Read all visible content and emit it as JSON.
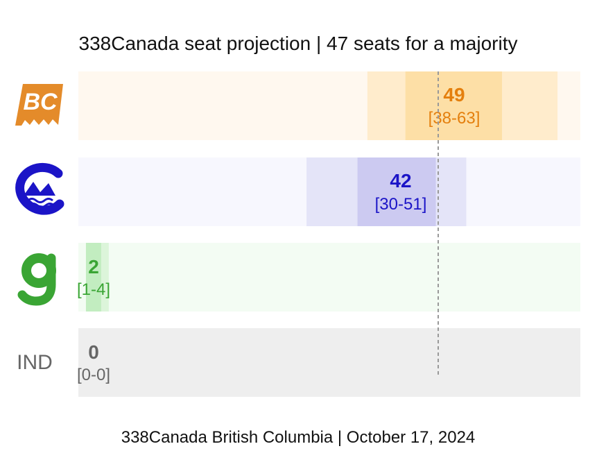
{
  "chart_data": {
    "type": "bar",
    "title": "338Canada seat projection | 47 seats for a majority",
    "footer": "338Canada British Columbia | October 17, 2024",
    "majority_line": 47,
    "xlim": [
      0,
      66
    ],
    "parties": [
      {
        "key": "bc-conservatives",
        "logo": "bc-conservative-logo",
        "value": 49,
        "range_label": "[38-63]",
        "low": 38,
        "high": 63,
        "inner_low": 43,
        "inner_high": 55.7,
        "outer_high": 63,
        "track_color": "#fff8ef",
        "outer_color": "#ffeccc",
        "inner_color": "#fddfa6",
        "text_color": "#e47f0d"
      },
      {
        "key": "bc-ndp",
        "logo": "bc-ndp-logo",
        "value": 42,
        "range_label": "[30-51]",
        "low": 30,
        "high": 51,
        "inner_low": 36.7,
        "inner_high": 47,
        "track_color": "#f7f7fe",
        "outer_color": "#e4e4f8",
        "inner_color": "#cccaf1",
        "text_color": "#1b14c7"
      },
      {
        "key": "bc-greens",
        "logo": "bc-green-logo",
        "value": 2,
        "range_label": "[1-4]",
        "low": 1,
        "high": 4,
        "inner_low": 1,
        "inner_high": 3,
        "track_color": "#f3fcf3",
        "outer_color": "#dcf5da",
        "inner_color": "#c2edc0",
        "text_color": "#3aa534"
      },
      {
        "key": "independents",
        "label": "IND",
        "value": 0,
        "range_label": "[0-0]",
        "low": 0,
        "high": 0,
        "inner_low": 0,
        "inner_high": 0,
        "track_color": "#eeeeee",
        "outer_color": "#eeeeee",
        "inner_color": "#eeeeee",
        "text_color": "#666666"
      }
    ]
  },
  "colors": {
    "bc_orange": "#e48b2a",
    "ndp_blue": "#1b14c7",
    "green": "#3aa534",
    "majority_line": "#999999"
  }
}
